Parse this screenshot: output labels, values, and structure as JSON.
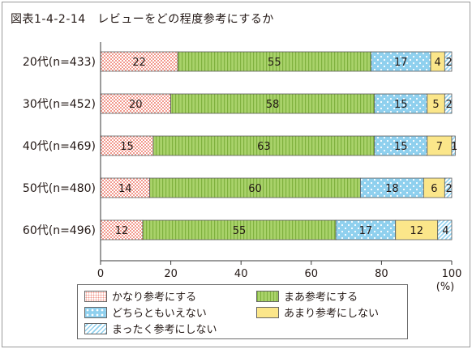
{
  "title": "図表1-4-2-14　レビューをどの程度参考にするか",
  "colors": {
    "kanari": "#f29a8e",
    "maa": "#a9d26a",
    "dochira": "#8fd0ee",
    "amari": "#fbe68a",
    "mattaku": "#8fd0ee"
  },
  "chart_data": {
    "type": "bar",
    "orientation": "horizontal",
    "stacked": true,
    "categories": [
      "20代(n=433)",
      "30代(n=452)",
      "40代(n=469)",
      "50代(n=480)",
      "60代(n=496)"
    ],
    "series": [
      {
        "name": "かなり参考にする",
        "values": [
          22,
          20,
          15,
          14,
          12
        ],
        "labels": [
          "22",
          "20",
          "15",
          "14",
          "12"
        ],
        "pattern": "dots",
        "color_key": "kanari"
      },
      {
        "name": "まあ参考にする",
        "values": [
          55,
          58,
          63,
          60,
          55
        ],
        "labels": [
          "55",
          "58",
          "63",
          "60",
          "55"
        ],
        "pattern": "vstripes",
        "color_key": "maa"
      },
      {
        "name": "どちらともいえない",
        "values": [
          17,
          15,
          15,
          18,
          17
        ],
        "labels": [
          "17",
          "15",
          "15",
          "18",
          "17"
        ],
        "pattern": "spots",
        "color_key": "dochira"
      },
      {
        "name": "あまり参考にしない",
        "values": [
          4,
          5,
          7,
          6,
          12
        ],
        "labels": [
          "4",
          "5",
          "7",
          "6",
          "12"
        ],
        "pattern": "plain",
        "color_key": "amari"
      },
      {
        "name": "まったく参考にしない",
        "values": [
          2,
          2,
          1,
          2,
          4
        ],
        "labels": [
          "2",
          "2",
          "1",
          "2",
          "4"
        ],
        "pattern": "diag",
        "color_key": "mattaku"
      }
    ],
    "x_ticks": [
      "0",
      "20",
      "40",
      "60",
      "80",
      "100"
    ],
    "xlim": [
      0,
      100
    ],
    "x_unit": "(%)",
    "grid": false,
    "legend_position": "bottom"
  },
  "legend": {
    "items": [
      {
        "label": "かなり参考にする",
        "pattern": "dots",
        "color_key": "kanari"
      },
      {
        "label": "まあ参考にする",
        "pattern": "vstripes",
        "color_key": "maa"
      },
      {
        "label": "どちらともいえない",
        "pattern": "spots",
        "color_key": "dochira"
      },
      {
        "label": "あまり参考にしない",
        "pattern": "plain",
        "color_key": "amari"
      },
      {
        "label": "まったく参考にしない",
        "pattern": "diag",
        "color_key": "mattaku"
      }
    ]
  }
}
